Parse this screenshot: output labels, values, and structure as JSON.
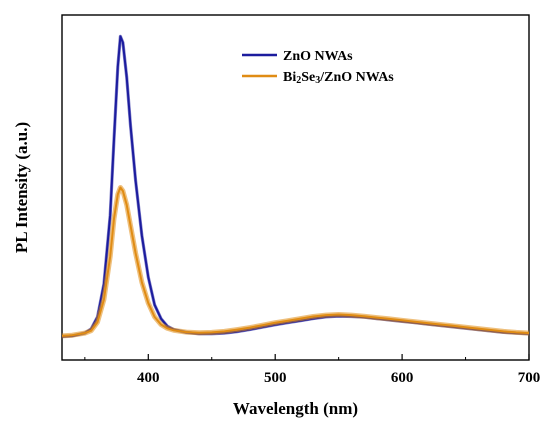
{
  "chart_data": {
    "type": "line",
    "title": "",
    "xlabel": "Wavelength (nm)",
    "ylabel": "PL Intensity (a.u.)",
    "xlim": [
      332,
      700
    ],
    "ylim": [
      0,
      1
    ],
    "x_ticks": [
      400,
      500,
      600,
      700
    ],
    "y_tick_labels": false,
    "grid": false,
    "legend_position": "top-right",
    "series": [
      {
        "name": "ZnO NWAs",
        "color": "#1c1c9e",
        "x": [
          332,
          340,
          350,
          355,
          360,
          365,
          370,
          373,
          376,
          378,
          380,
          383,
          386,
          390,
          395,
          400,
          405,
          410,
          415,
          420,
          430,
          440,
          450,
          460,
          470,
          480,
          490,
          500,
          510,
          520,
          530,
          540,
          550,
          560,
          570,
          580,
          590,
          600,
          610,
          620,
          630,
          640,
          650,
          660,
          670,
          680,
          690,
          700
        ],
        "y": [
          0.068,
          0.07,
          0.078,
          0.09,
          0.125,
          0.22,
          0.42,
          0.64,
          0.85,
          0.938,
          0.92,
          0.82,
          0.68,
          0.52,
          0.36,
          0.24,
          0.16,
          0.12,
          0.098,
          0.088,
          0.08,
          0.076,
          0.076,
          0.078,
          0.082,
          0.088,
          0.095,
          0.102,
          0.108,
          0.114,
          0.12,
          0.125,
          0.127,
          0.126,
          0.124,
          0.12,
          0.116,
          0.112,
          0.108,
          0.104,
          0.1,
          0.096,
          0.092,
          0.088,
          0.084,
          0.08,
          0.078,
          0.076
        ]
      },
      {
        "name": "Bi₂Se₃/ZnO NWAs",
        "color": "#e08c14",
        "x": [
          332,
          340,
          350,
          355,
          360,
          365,
          370,
          373,
          376,
          378,
          380,
          383,
          386,
          390,
          395,
          400,
          405,
          410,
          415,
          420,
          430,
          440,
          450,
          460,
          470,
          480,
          490,
          500,
          510,
          520,
          530,
          540,
          550,
          560,
          570,
          580,
          590,
          600,
          610,
          620,
          630,
          640,
          650,
          660,
          670,
          680,
          690,
          700
        ],
        "y": [
          0.07,
          0.072,
          0.078,
          0.085,
          0.11,
          0.175,
          0.3,
          0.41,
          0.48,
          0.5,
          0.49,
          0.45,
          0.39,
          0.31,
          0.225,
          0.165,
          0.125,
          0.103,
          0.092,
          0.086,
          0.081,
          0.079,
          0.08,
          0.083,
          0.088,
          0.094,
          0.101,
          0.108,
          0.114,
          0.12,
          0.126,
          0.13,
          0.132,
          0.13,
          0.127,
          0.123,
          0.119,
          0.115,
          0.111,
          0.107,
          0.103,
          0.099,
          0.095,
          0.091,
          0.087,
          0.083,
          0.08,
          0.078
        ]
      }
    ]
  },
  "legend": {
    "entries": [
      {
        "label_main": "ZnO NWAs",
        "label_pre": "",
        "label_sub": "",
        "label_post": ""
      },
      {
        "label_main": "",
        "label_pre": "Bi",
        "label_sub": "2",
        "label_mid": "Se",
        "label_sub2": "3",
        "label_post": "/ZnO NWAs"
      }
    ]
  }
}
